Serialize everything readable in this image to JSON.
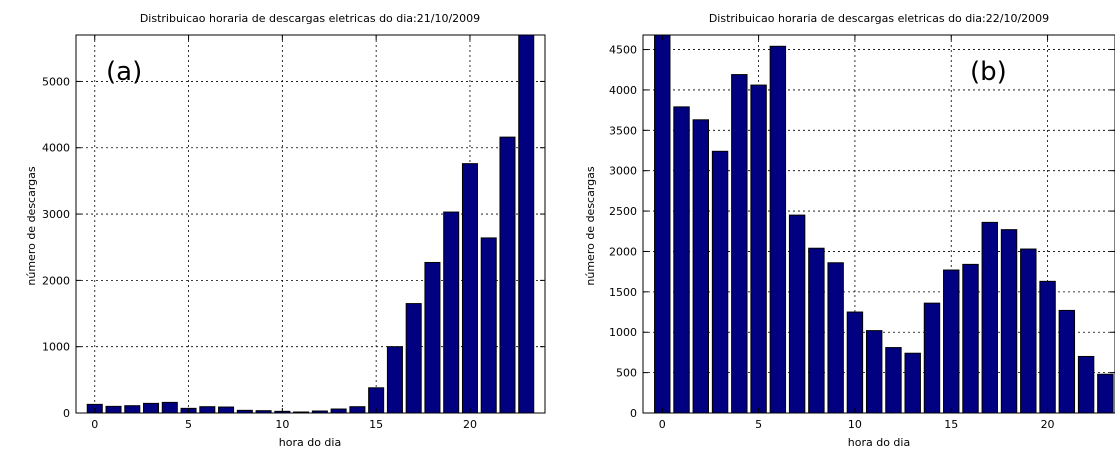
{
  "chart_data": [
    {
      "type": "bar",
      "panel_label": "(a)",
      "title": "Distribuicao horaria de descargas eletricas do dia:21/10/2009",
      "xlabel": "hora do dia",
      "ylabel": "número de descargas",
      "x": [
        0,
        1,
        2,
        3,
        4,
        5,
        6,
        7,
        8,
        9,
        10,
        11,
        12,
        13,
        14,
        15,
        16,
        17,
        18,
        19,
        20,
        21,
        22,
        23
      ],
      "values": [
        130,
        100,
        110,
        145,
        160,
        70,
        95,
        90,
        40,
        35,
        25,
        15,
        30,
        60,
        95,
        380,
        1000,
        1650,
        2270,
        3030,
        3760,
        2640,
        4160,
        5700
      ],
      "xlim": [
        -1,
        24
      ],
      "ylim": [
        0,
        5700
      ],
      "xticks": [
        0,
        5,
        10,
        15,
        20
      ],
      "yticks": [
        0,
        1000,
        2000,
        3000,
        4000,
        5000
      ],
      "grid": true,
      "bar_color": "#000080"
    },
    {
      "type": "bar",
      "panel_label": "(b)",
      "title": "Distribuicao horaria de descargas eletricas do dia:22/10/2009",
      "xlabel": "hora do dia",
      "ylabel": "número de descargas",
      "x": [
        0,
        1,
        2,
        3,
        4,
        5,
        6,
        7,
        8,
        9,
        10,
        11,
        12,
        13,
        14,
        15,
        16,
        17,
        18,
        19,
        20,
        21,
        22,
        23
      ],
      "values": [
        4680,
        3790,
        3630,
        3240,
        4190,
        4060,
        4540,
        2450,
        2040,
        1860,
        1250,
        1020,
        810,
        740,
        1360,
        1770,
        1840,
        2360,
        2270,
        2030,
        1630,
        1270,
        700,
        480
      ],
      "xlim": [
        -1,
        23.5
      ],
      "ylim": [
        0,
        4680
      ],
      "xticks": [
        0,
        5,
        10,
        15,
        20
      ],
      "yticks": [
        0,
        500,
        1000,
        1500,
        2000,
        2500,
        3000,
        3500,
        4000,
        4500
      ],
      "grid": true,
      "bar_color": "#000080"
    }
  ]
}
